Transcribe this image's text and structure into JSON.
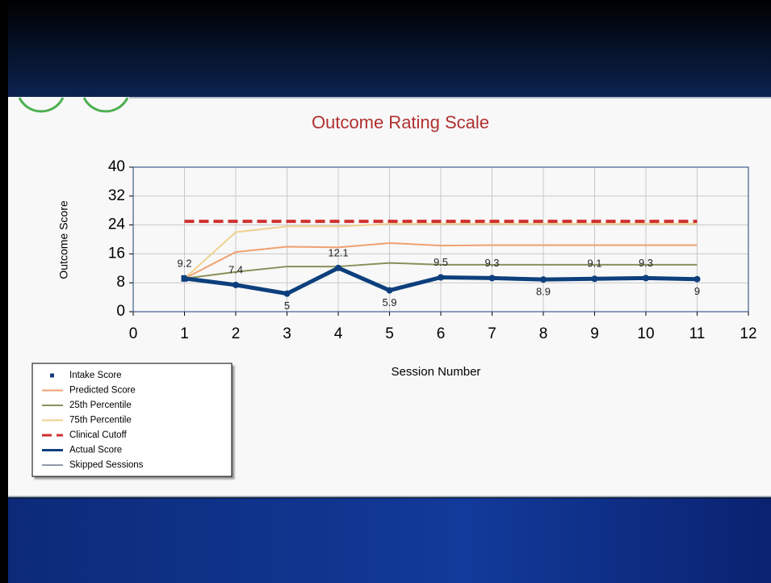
{
  "chart_data": {
    "type": "line",
    "title": "Outcome Rating Scale",
    "xlabel": "Session Number",
    "ylabel": "Outcome Score",
    "xlim": [
      0,
      12
    ],
    "xticks": [
      0,
      1,
      2,
      3,
      4,
      5,
      6,
      7,
      8,
      9,
      10,
      11,
      12
    ],
    "ylim": [
      0,
      40
    ],
    "yticks": [
      0,
      8,
      16,
      24,
      32,
      40
    ],
    "grid": true,
    "legend": "lower left",
    "series": [
      {
        "name": "Intake Score",
        "color": "#1a3e78",
        "style": "marker",
        "x": [
          1
        ],
        "values": [
          9.2
        ]
      },
      {
        "name": "Predicted Score",
        "color": "#f0a070",
        "style": "line",
        "x": [
          1,
          2,
          3,
          4,
          5,
          6,
          7,
          8,
          9,
          10,
          11
        ],
        "values": [
          9.2,
          16.5,
          18,
          17.8,
          19,
          18.3,
          18.4,
          18.4,
          18.4,
          18.4,
          18.4
        ]
      },
      {
        "name": "25th Percentile",
        "color": "#8b8f5a",
        "style": "line",
        "x": [
          1,
          2,
          3,
          4,
          5,
          6,
          7,
          8,
          9,
          10,
          11
        ],
        "values": [
          9.2,
          11,
          12.5,
          12.5,
          13.5,
          13,
          13,
          13,
          13,
          13,
          13
        ]
      },
      {
        "name": "75th Percentile",
        "color": "#f0d090",
        "style": "line",
        "x": [
          1,
          2,
          3,
          4,
          5,
          6,
          7,
          8,
          9,
          10,
          11
        ],
        "values": [
          9.2,
          22,
          23.6,
          23.6,
          24.3,
          24.3,
          24.3,
          24.3,
          24.3,
          24.3,
          24.3
        ]
      },
      {
        "name": "Clinical Cutoff",
        "color": "#d03030",
        "style": "dashed",
        "x": [
          1,
          2,
          3,
          4,
          5,
          6,
          7,
          8,
          9,
          10,
          11
        ],
        "values": [
          25,
          25,
          25,
          25,
          25,
          25,
          25,
          25,
          25,
          25,
          25
        ]
      },
      {
        "name": "Actual Score",
        "color": "#0d3f7d",
        "style": "thick",
        "labels": true,
        "x": [
          1,
          2,
          3,
          4,
          5,
          6,
          7,
          8,
          9,
          10,
          11
        ],
        "values": [
          9.2,
          7.4,
          5,
          12.1,
          5.9,
          9.5,
          9.3,
          8.9,
          9.1,
          9.3,
          9
        ]
      },
      {
        "name": "Skipped Sessions",
        "color": "#203050",
        "style": "thin",
        "x": [],
        "values": []
      }
    ]
  }
}
